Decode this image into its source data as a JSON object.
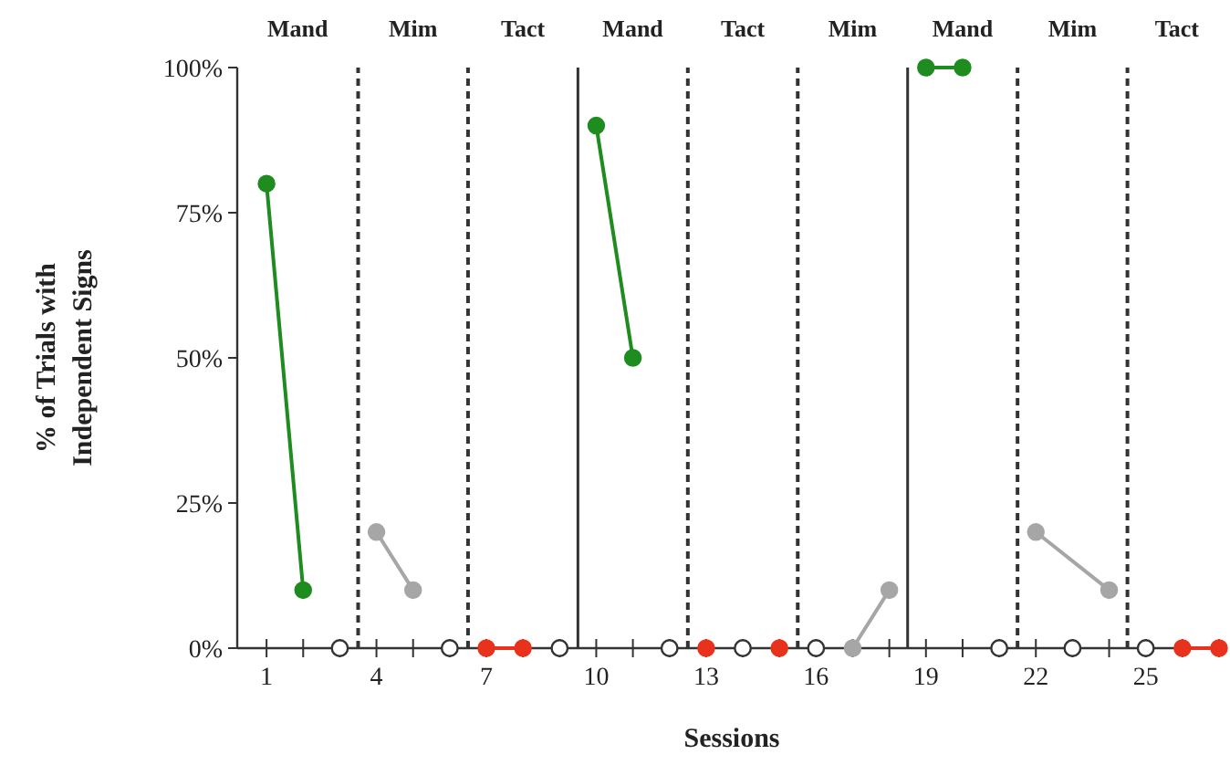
{
  "chart_data": {
    "type": "line",
    "xlabel": "Sessions",
    "ylabel": "% of Trials with\nIndependent Signs",
    "xlim": [
      0.2,
      27.2
    ],
    "xticks": [
      1,
      {
        "value": 2,
        "label": null
      },
      {
        "value": 3,
        "label": null
      },
      4,
      {
        "value": 5,
        "label": null
      },
      {
        "value": 6,
        "label": null
      },
      7,
      {
        "value": 8,
        "label": null
      },
      {
        "value": 9,
        "label": null
      },
      10,
      {
        "value": 11,
        "label": null
      },
      {
        "value": 12,
        "label": null
      },
      13,
      {
        "value": 14,
        "label": null
      },
      {
        "value": 15,
        "label": null
      },
      16,
      {
        "value": 17,
        "label": null
      },
      {
        "value": 18,
        "label": null
      },
      19,
      {
        "value": 20,
        "label": null
      },
      {
        "value": 21,
        "label": null
      },
      22,
      {
        "value": 23,
        "label": null
      },
      {
        "value": 24,
        "label": null
      },
      25,
      {
        "value": 26,
        "label": null
      },
      {
        "value": 27,
        "label": null
      }
    ],
    "ylim": [
      0,
      100
    ],
    "yticks": [
      {
        "value": 0,
        "label": "0%"
      },
      {
        "value": 25,
        "label": "25%"
      },
      {
        "value": 50,
        "label": "50%"
      },
      {
        "value": 75,
        "label": "75%"
      },
      {
        "value": 100,
        "label": "100%"
      }
    ],
    "grid": false,
    "marker": "circle",
    "line_style": "solid",
    "series": [
      {
        "color": "#1e8c1e",
        "x": [
          1,
          2,
          3,
          10,
          11,
          12,
          19,
          20
        ],
        "values": [
          80,
          10,
          null,
          90,
          50,
          null,
          100,
          100
        ]
      },
      {
        "color": "#a6a6a6",
        "x": [
          4,
          5,
          6,
          17,
          18,
          19,
          22,
          24
        ],
        "values": [
          20,
          10,
          null,
          0,
          10,
          null,
          20,
          10
        ]
      },
      {
        "color": "#e8321c",
        "x": [
          7,
          8,
          9,
          13,
          14,
          15,
          16,
          26,
          27
        ],
        "values": [
          0,
          0,
          null,
          0,
          null,
          0,
          null,
          0,
          0
        ]
      },
      {
        "type": "scatter",
        "color": "#ffffff",
        "x": [
          3,
          6,
          9,
          12,
          14,
          16,
          21,
          23,
          25
        ],
        "values": [
          0,
          0,
          0,
          0,
          0,
          0,
          0,
          0,
          0
        ]
      }
    ],
    "ref_lines": [
      {
        "axis": "x",
        "value": 3.5,
        "line_style": "dashed",
        "color": "#333333"
      },
      {
        "axis": "x",
        "value": 6.5,
        "line_style": "dashed",
        "color": "#333333"
      },
      {
        "axis": "x",
        "value": 9.5,
        "line_style": "solid",
        "color": "#333333"
      },
      {
        "axis": "x",
        "value": 12.5,
        "line_style": "dashed",
        "color": "#333333"
      },
      {
        "axis": "x",
        "value": 15.5,
        "line_style": "dashed",
        "color": "#333333"
      },
      {
        "axis": "x",
        "value": 18.5,
        "line_style": "solid",
        "color": "#333333"
      },
      {
        "axis": "x",
        "value": 21.5,
        "line_style": "dashed",
        "color": "#333333"
      },
      {
        "axis": "x",
        "value": 24.5,
        "line_style": "dashed",
        "color": "#333333"
      }
    ],
    "annotations": [
      "Mand",
      "Mim",
      "Tact",
      "Mand",
      "Tact",
      "Mim",
      "Mand",
      "Mim",
      "Tact"
    ]
  }
}
